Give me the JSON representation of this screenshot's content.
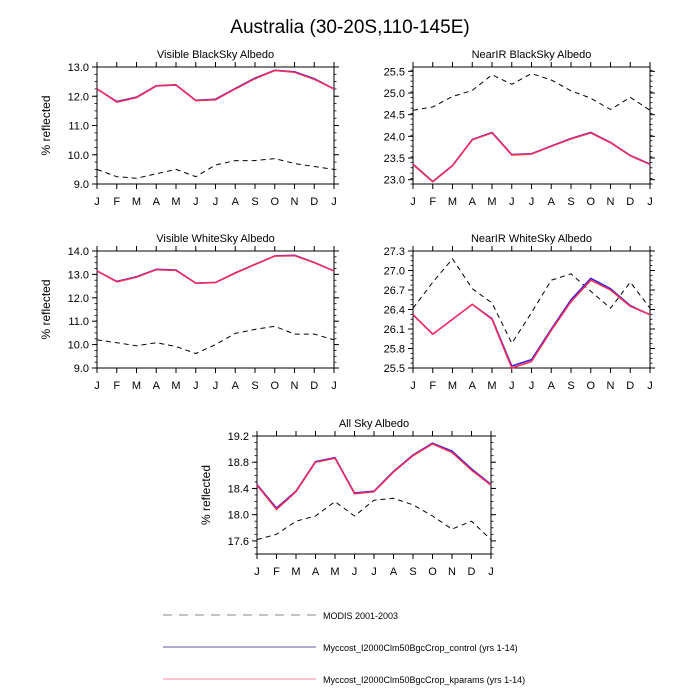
{
  "figure_title": "Australia (30-20S,110-145E)",
  "colors": {
    "modis": "#000000",
    "control": "#3a1fd8",
    "kparams": "#ff2a55",
    "axis": "#000000"
  },
  "chart_data": [
    {
      "type": "line",
      "title": "Visible BlackSky Albedo",
      "ylabel": "% reflected",
      "categories": [
        "J",
        "F",
        "M",
        "A",
        "M",
        "J",
        "J",
        "A",
        "S",
        "O",
        "N",
        "D",
        "J"
      ],
      "ylim": [
        9.0,
        13.0
      ],
      "yticks": [
        9.0,
        10.0,
        11.0,
        12.0,
        13.0
      ],
      "tick_labels": [
        "9.0",
        "10.0",
        "11.0",
        "12.0",
        "13.0"
      ],
      "series": [
        {
          "name": "MODIS 2001-2003",
          "values": [
            9.5,
            9.25,
            9.2,
            9.35,
            9.5,
            9.25,
            9.65,
            9.8,
            9.8,
            9.87,
            9.7,
            9.6,
            9.5
          ]
        },
        {
          "name": "Myccost_I2000Clm50BgcCrop_control (yrs 1-14)",
          "values": [
            12.25,
            11.8,
            11.95,
            12.35,
            12.38,
            11.85,
            11.88,
            12.25,
            12.6,
            12.88,
            12.82,
            12.58,
            12.25
          ]
        },
        {
          "name": "Myccost_I2000Clm50BgcCrop_kparams (yrs 1-14)",
          "values": [
            12.25,
            11.82,
            11.97,
            12.36,
            12.39,
            11.86,
            11.9,
            12.27,
            12.62,
            12.89,
            12.84,
            12.6,
            12.25
          ]
        }
      ]
    },
    {
      "type": "line",
      "title": "NearIR BlackSky Albedo",
      "ylabel": "",
      "categories": [
        "J",
        "F",
        "M",
        "A",
        "M",
        "J",
        "J",
        "A",
        "S",
        "O",
        "N",
        "D",
        "J"
      ],
      "ylim": [
        22.9,
        25.6
      ],
      "yticks": [
        23.0,
        23.5,
        24.0,
        24.5,
        25.0,
        25.5
      ],
      "tick_labels": [
        "23.0",
        "23.5",
        "24.0",
        "24.5",
        "25.0",
        "25.5"
      ],
      "series": [
        {
          "name": "MODIS 2001-2003",
          "values": [
            24.6,
            24.68,
            24.92,
            25.06,
            25.42,
            25.2,
            25.45,
            25.3,
            25.05,
            24.88,
            24.62,
            24.9,
            24.6
          ]
        },
        {
          "name": "Myccost_I2000Clm50BgcCrop_control (yrs 1-14)",
          "values": [
            23.35,
            22.95,
            23.32,
            23.92,
            24.08,
            23.57,
            23.59,
            23.77,
            23.94,
            24.08,
            23.85,
            23.55,
            23.35
          ]
        },
        {
          "name": "Myccost_I2000Clm50BgcCrop_kparams (yrs 1-14)",
          "values": [
            23.36,
            22.96,
            23.33,
            23.93,
            24.09,
            23.58,
            23.6,
            23.78,
            23.95,
            24.09,
            23.86,
            23.56,
            23.36
          ]
        }
      ]
    },
    {
      "type": "line",
      "title": "Visible WhiteSky Albedo",
      "ylabel": "% reflected",
      "categories": [
        "J",
        "F",
        "M",
        "A",
        "M",
        "J",
        "J",
        "A",
        "S",
        "O",
        "N",
        "D",
        "J"
      ],
      "ylim": [
        9.0,
        14.0
      ],
      "yticks": [
        9.0,
        10.0,
        11.0,
        12.0,
        13.0,
        14.0
      ],
      "tick_labels": [
        "9.0",
        "10.0",
        "11.0",
        "12.0",
        "13.0",
        "14.0"
      ],
      "series": [
        {
          "name": "MODIS 2001-2003",
          "values": [
            10.2,
            10.08,
            9.95,
            10.08,
            9.92,
            9.62,
            10.0,
            10.48,
            10.65,
            10.78,
            10.45,
            10.45,
            10.2
          ]
        },
        {
          "name": "Myccost_I2000Clm50BgcCrop_control (yrs 1-14)",
          "values": [
            13.15,
            12.68,
            12.88,
            13.2,
            13.17,
            12.62,
            12.65,
            13.05,
            13.42,
            13.78,
            13.8,
            13.5,
            13.15
          ]
        },
        {
          "name": "Myccost_I2000Clm50BgcCrop_kparams (yrs 1-14)",
          "values": [
            13.15,
            12.7,
            12.9,
            13.22,
            13.19,
            12.63,
            12.66,
            13.07,
            13.43,
            13.79,
            13.82,
            13.51,
            13.15
          ]
        }
      ]
    },
    {
      "type": "line",
      "title": "NearIR WhiteSky Albedo",
      "ylabel": "",
      "categories": [
        "J",
        "F",
        "M",
        "A",
        "M",
        "J",
        "J",
        "A",
        "S",
        "O",
        "N",
        "D",
        "J"
      ],
      "ylim": [
        25.5,
        27.3
      ],
      "yticks": [
        25.5,
        25.8,
        26.1,
        26.4,
        26.7,
        27.0,
        27.3
      ],
      "tick_labels": [
        "25.5",
        "25.8",
        "26.1",
        "26.4",
        "26.7",
        "27.0",
        "27.3"
      ],
      "series": [
        {
          "name": "MODIS 2001-2003",
          "values": [
            26.42,
            26.82,
            27.18,
            26.72,
            26.5,
            25.88,
            26.35,
            26.85,
            26.95,
            26.68,
            26.42,
            26.82,
            26.42
          ]
        },
        {
          "name": "Myccost_I2000Clm50BgcCrop_control (yrs 1-14)",
          "values": [
            26.32,
            26.02,
            26.25,
            26.48,
            26.25,
            25.5,
            25.6,
            26.08,
            26.52,
            26.85,
            26.7,
            26.45,
            26.32
          ]
        },
        {
          "name": "Myccost_I2000Clm50BgcCrop_kparams (yrs 1-14)",
          "values": [
            26.32,
            26.02,
            26.25,
            26.48,
            26.26,
            25.53,
            25.63,
            26.1,
            26.55,
            26.88,
            26.72,
            26.46,
            26.32
          ]
        }
      ]
    },
    {
      "type": "line",
      "title": "All Sky Albedo",
      "ylabel": "% reflected",
      "categories": [
        "J",
        "F",
        "M",
        "A",
        "M",
        "J",
        "J",
        "A",
        "S",
        "O",
        "N",
        "D",
        "J"
      ],
      "ylim": [
        17.4,
        19.2
      ],
      "yticks": [
        17.6,
        18.0,
        18.4,
        18.8,
        19.2
      ],
      "tick_labels": [
        "17.6",
        "18.0",
        "18.4",
        "18.8",
        "19.2"
      ],
      "series": [
        {
          "name": "MODIS 2001-2003",
          "values": [
            17.62,
            17.7,
            17.9,
            17.98,
            18.2,
            17.98,
            18.22,
            18.25,
            18.15,
            17.98,
            17.78,
            17.9,
            17.62
          ]
        },
        {
          "name": "Myccost_I2000Clm50BgcCrop_control (yrs 1-14)",
          "values": [
            18.45,
            18.08,
            18.35,
            18.8,
            18.86,
            18.32,
            18.35,
            18.65,
            18.9,
            19.08,
            18.95,
            18.68,
            18.45
          ]
        },
        {
          "name": "Myccost_I2000Clm50BgcCrop_kparams (yrs 1-14)",
          "values": [
            18.46,
            18.1,
            18.36,
            18.81,
            18.87,
            18.33,
            18.36,
            18.66,
            18.91,
            19.09,
            18.97,
            18.7,
            18.46
          ]
        }
      ]
    }
  ],
  "legend": {
    "placement": "bottom-center",
    "entries": [
      {
        "label": "MODIS 2001-2003",
        "style": "dashed",
        "color": "#b0b0b0"
      },
      {
        "label": "Myccost_I2000Clm50BgcCrop_control (yrs 1-14)",
        "style": "solid",
        "color": "#5a5aa0"
      },
      {
        "label": "Myccost_I2000Clm50BgcCrop_kparams (yrs 1-14)",
        "style": "solid",
        "color": "#ff8aa0"
      }
    ]
  }
}
